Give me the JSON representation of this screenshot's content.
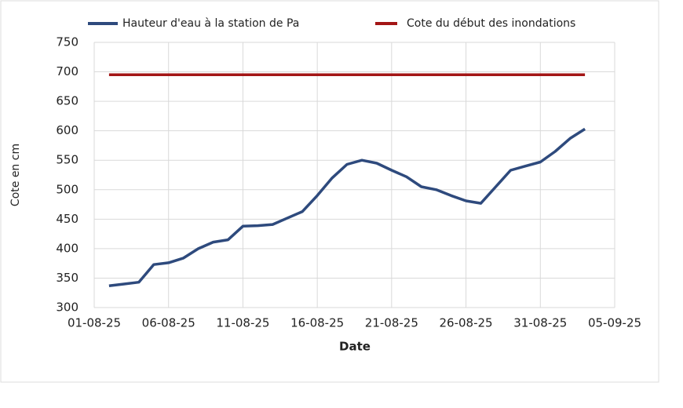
{
  "chart_data": {
    "type": "line",
    "y_label": "Cote en cm",
    "x_label": "Date",
    "x": [
      "02-08-25",
      "03-08-25",
      "04-08-25",
      "05-08-25",
      "06-08-25",
      "07-08-25",
      "08-08-25",
      "09-08-25",
      "10-08-25",
      "11-08-25",
      "12-08-25",
      "13-08-25",
      "14-08-25",
      "15-08-25",
      "16-08-25",
      "17-08-25",
      "18-08-25",
      "19-08-25",
      "20-08-25",
      "21-08-25",
      "22-08-25",
      "23-08-25",
      "24-08-25",
      "25-08-25",
      "26-08-25",
      "27-08-25",
      "28-08-25",
      "29-08-25",
      "30-08-25",
      "31-08-25",
      "01-09-25",
      "02-09-25",
      "03-09-25"
    ],
    "series": [
      {
        "name": "Hauteur d'eau à la station de Pa",
        "color": "#2e4a7d",
        "values": [
          337,
          340,
          343,
          373,
          376,
          384,
          400,
          411,
          415,
          438,
          439,
          441,
          452,
          463,
          490,
          520,
          543,
          550,
          545,
          533,
          522,
          505,
          500,
          490,
          481,
          477,
          505,
          533,
          540,
          547,
          565,
          587,
          603
        ]
      },
      {
        "name": "Cote du début des inondations",
        "color": "#a31515",
        "values": [
          695,
          695,
          695,
          695,
          695,
          695,
          695,
          695,
          695,
          695,
          695,
          695,
          695,
          695,
          695,
          695,
          695,
          695,
          695,
          695,
          695,
          695,
          695,
          695,
          695,
          695,
          695,
          695,
          695,
          695,
          695,
          695,
          695
        ]
      }
    ],
    "xlim": [
      "01-08-25",
      "05-09-25"
    ],
    "xticks": [
      "01-08-25",
      "06-08-25",
      "11-08-25",
      "16-08-25",
      "21-08-25",
      "26-08-25",
      "31-08-25",
      "05-09-25"
    ],
    "ylim": [
      300,
      750
    ],
    "yticks": [
      300,
      350,
      400,
      450,
      500,
      550,
      600,
      650,
      700,
      750
    ],
    "grid": true,
    "legend": "top"
  }
}
